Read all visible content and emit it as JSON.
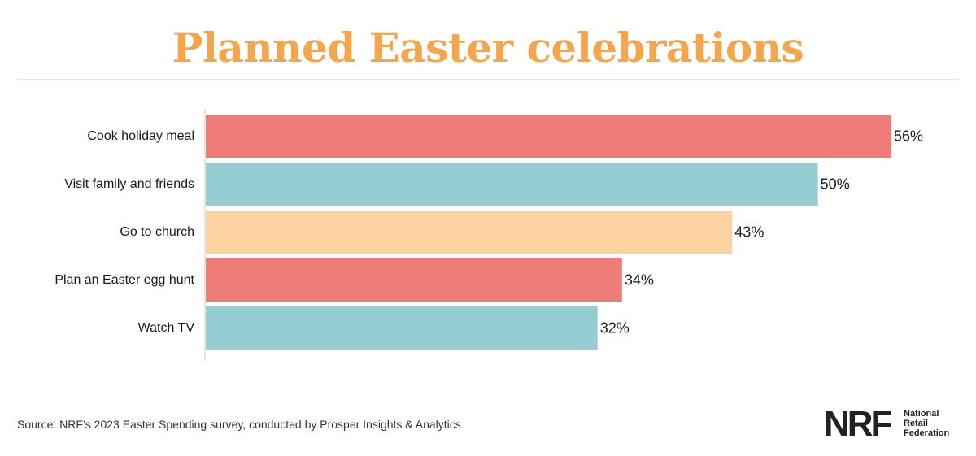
{
  "title": "Planned Easter celebrations",
  "colors": {
    "title": "#f3a64c",
    "coral": "#ee7c78",
    "teal": "#96cdd3",
    "peach": "#fcd3a1",
    "text": "#1a1a1a",
    "axis": "#cccccc"
  },
  "chart_data": {
    "type": "bar",
    "orientation": "horizontal",
    "categories": [
      "Cook holiday meal",
      "Visit family and friends",
      "Go to church",
      "Plan an Easter egg hunt",
      "Watch TV"
    ],
    "values": [
      56,
      50,
      43,
      34,
      32
    ],
    "value_labels": [
      "56%",
      "50%",
      "43%",
      "34%",
      "32%"
    ],
    "bar_colors": [
      "#ee7c78",
      "#96cdd3",
      "#fcd3a1",
      "#ee7c78",
      "#96cdd3"
    ],
    "unit": "%",
    "xlim": [
      0,
      56
    ],
    "grid": false,
    "legend": "none"
  },
  "source": "Source: NRF’s 2023 Easter Spending survey, conducted by Prosper Insights & Analytics",
  "logo": {
    "mark": "NRF",
    "name_lines": [
      "National",
      "Retail",
      "Federation"
    ]
  }
}
